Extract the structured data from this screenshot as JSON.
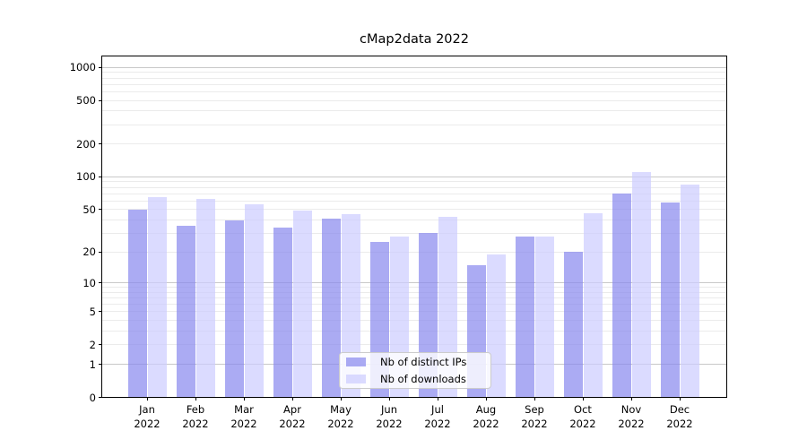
{
  "title": "cMap2data 2022",
  "legend": {
    "items": [
      {
        "label": "Nb of distinct IPs"
      },
      {
        "label": "Nb of downloads"
      }
    ]
  },
  "colors": {
    "distinct_ips_bar": "rgba(136,136,238,0.7)",
    "downloads_bar": "rgba(204,204,255,0.7)",
    "major_gridline": "#c9c9c9",
    "minor_gridline": "#ebebeb"
  },
  "chart_data": {
    "type": "bar",
    "title": "cMap2data 2022",
    "categories": [
      "Jan 2022",
      "Feb 2022",
      "Mar 2022",
      "Apr 2022",
      "May 2022",
      "Jun 2022",
      "Jul 2022",
      "Aug 2022",
      "Sep 2022",
      "Oct 2022",
      "Nov 2022",
      "Dec 2022"
    ],
    "series": [
      {
        "name": "Nb of distinct IPs",
        "color": "rgba(136,136,238,0.7)",
        "values": [
          50,
          35,
          40,
          34,
          41,
          25,
          30,
          15,
          28,
          20,
          70,
          58
        ]
      },
      {
        "name": "Nb of downloads",
        "color": "rgba(204,204,255,0.7)",
        "values": [
          65,
          63,
          56,
          49,
          45,
          28,
          43,
          19,
          28,
          46,
          110,
          85
        ]
      }
    ],
    "xlabel": "",
    "ylabel": "",
    "y_scale": "log10(value+1)",
    "ylim": [
      0,
      1292
    ],
    "y_ticks_labeled": [
      0,
      1,
      2,
      5,
      10,
      20,
      50,
      100,
      200,
      500,
      1000
    ],
    "y_gridlines_major": [
      1,
      10,
      100,
      1000
    ],
    "y_gridlines_minor": [
      2,
      3,
      4,
      5,
      6,
      7,
      8,
      9,
      20,
      30,
      40,
      50,
      60,
      70,
      80,
      90,
      200,
      300,
      400,
      500,
      600,
      700,
      800,
      900
    ],
    "grid": true,
    "legend_position": "bottom-center"
  }
}
